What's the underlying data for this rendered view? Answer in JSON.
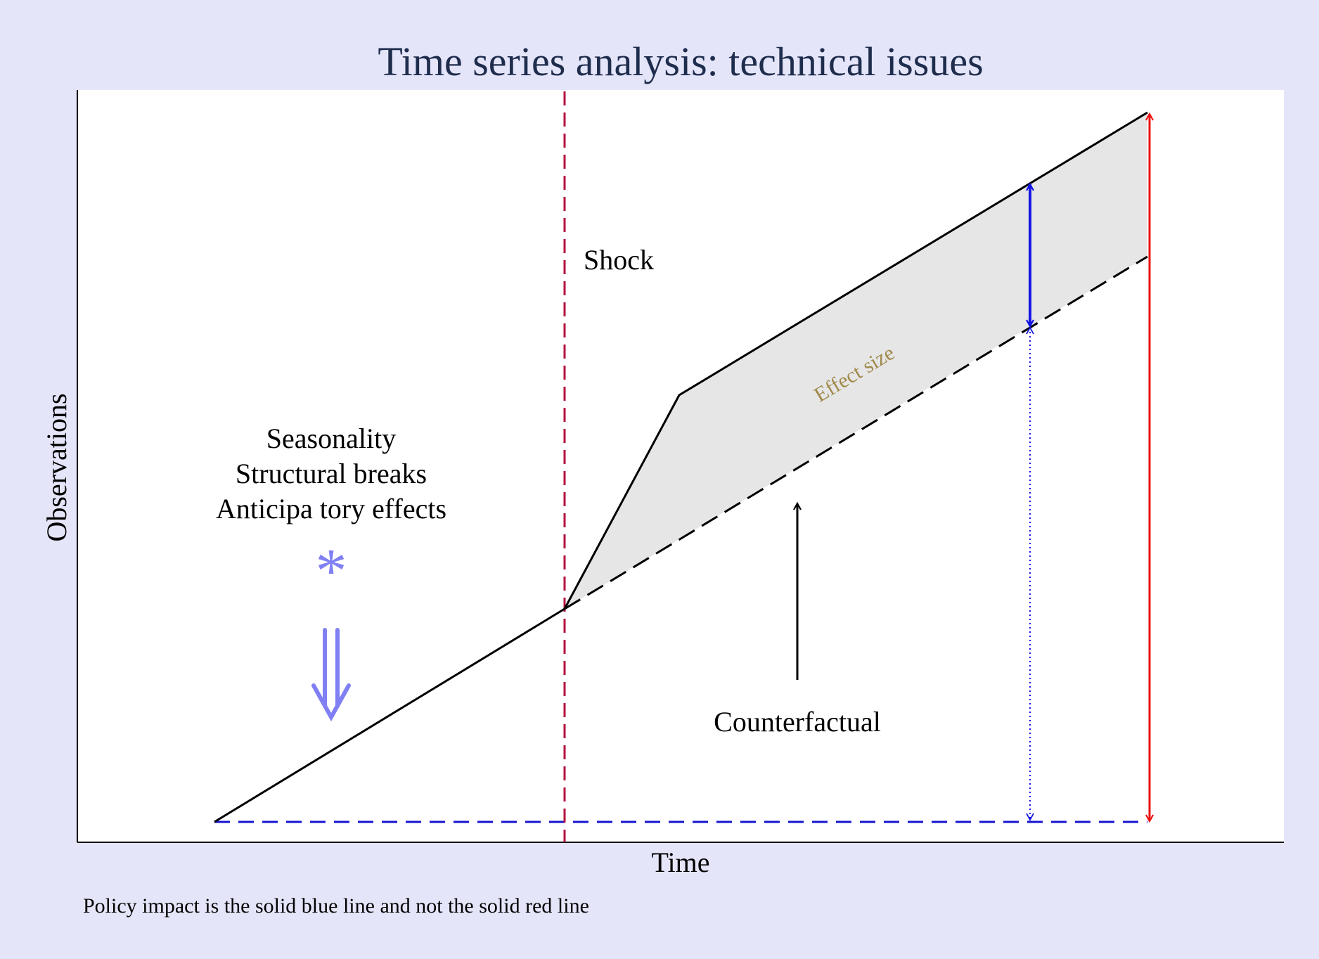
{
  "title": "Time series analysis: technical issues",
  "xlabel": "Time",
  "ylabel": "Observations",
  "note": "Policy impact is the solid blue line and not the solid red line",
  "annotations": {
    "shock": "Shock",
    "issues": [
      "Seasonality",
      "Structural breaks",
      "Anticipa tory effects"
    ],
    "asterisk": "*",
    "counterfactual": "Counterfactual",
    "effect_size": "Effect size"
  },
  "colors": {
    "background": "#e5e5fa",
    "plot_area": "#ffffff",
    "title": "#1f2d4d",
    "shock_line": "#b5123e",
    "baseline": "#1414d2",
    "policy_impact": "#1414e6",
    "total_change": "#ee1111",
    "issues_marker": "#8080f4",
    "effect_region": "#e6e6e6",
    "effect_label": "#a08a4a"
  },
  "icons": {
    "issues_marker": "asterisk",
    "issues_arrow": "double-arrow-down",
    "counterfactual_arrow": "arrow-up",
    "impact_arrow": "double-headed-arrow"
  }
}
